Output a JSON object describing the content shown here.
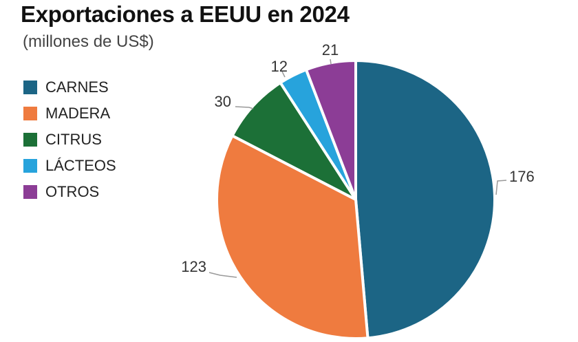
{
  "chart_data": {
    "type": "pie",
    "title": "Exportaciones a EEUU en 2024",
    "subtitle": "(millones de US$)",
    "categories": [
      "CARNES",
      "MADERA",
      "CITRUS",
      "LÁCTEOS",
      "OTROS"
    ],
    "values": [
      176,
      123,
      30,
      12,
      21
    ],
    "colors": [
      "#1c6585",
      "#ef7b3f",
      "#1c7037",
      "#27a3dc",
      "#8c3d96"
    ],
    "legend_position": "left"
  }
}
